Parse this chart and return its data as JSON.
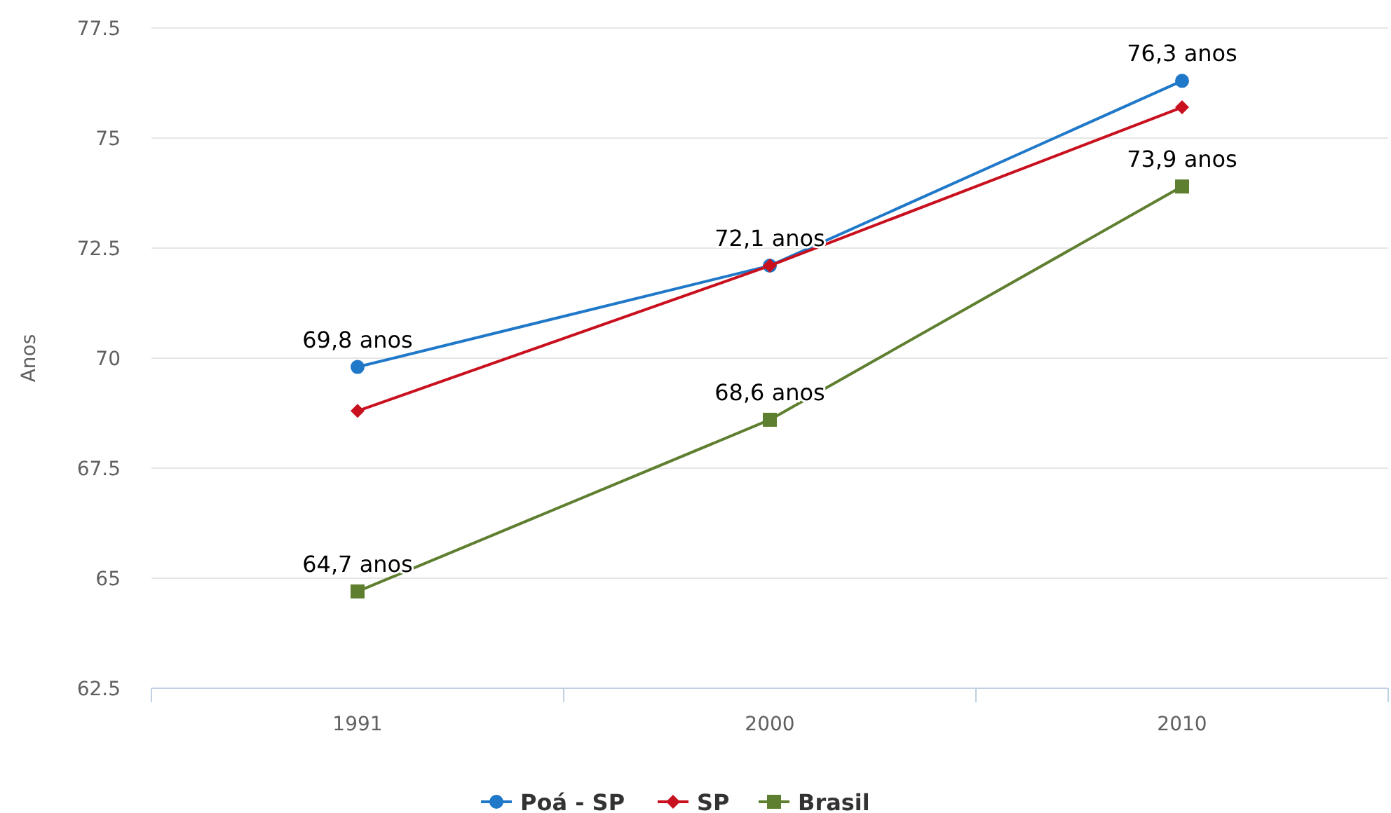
{
  "chart_data": {
    "type": "line",
    "ylabel": "Anos",
    "categories": [
      "1991",
      "2000",
      "2010"
    ],
    "series": [
      {
        "name": "Poá - SP",
        "color": "#1f78c8",
        "marker": "circle",
        "values": [
          69.8,
          72.1,
          76.3
        ],
        "value_labels": [
          "69,8 anos",
          "72,1 anos",
          "76,3 anos"
        ]
      },
      {
        "name": "SP",
        "color": "#c8101e",
        "marker": "diamond",
        "values": [
          68.8,
          72.1,
          75.7
        ]
      },
      {
        "name": "Brasil",
        "color": "#5e7f2f",
        "marker": "square",
        "values": [
          64.7,
          68.6,
          73.9
        ],
        "value_labels": [
          "64,7 anos",
          "68,6 anos",
          "73,9 anos"
        ]
      }
    ],
    "ylim": [
      62.5,
      77.5
    ],
    "yticks": [
      62.5,
      65,
      67.5,
      70,
      72.5,
      75,
      77.5
    ],
    "grid": "y",
    "legend": "bottom",
    "line_style": "solid"
  }
}
